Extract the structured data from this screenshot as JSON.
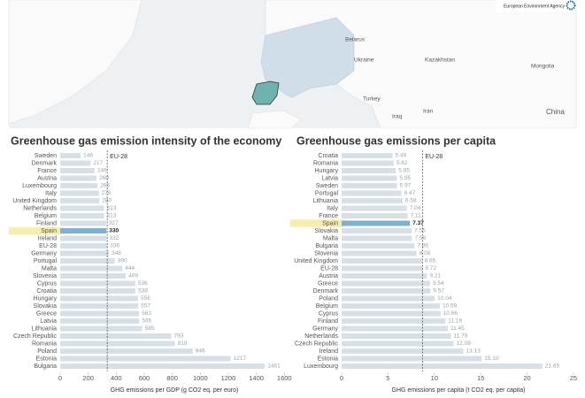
{
  "header": {
    "logo": "European Environment Agency"
  },
  "map": {
    "labels": [
      "Belarus",
      "Ukraine",
      "Kazakhstan",
      "Mongolia",
      "Turkey",
      "Iraq",
      "Iran",
      "China"
    ]
  },
  "chart_data": [
    {
      "type": "bar",
      "orientation": "horizontal",
      "title": "Greenhouse gas emission intensity of the economy",
      "categories": [
        "Sweden",
        "Denmark",
        "France",
        "Austria",
        "Luxembourg",
        "Italy",
        "United Kingdom",
        "Netherlands",
        "Belgium",
        "Finland",
        "Spain",
        "Ireland",
        "EU-28",
        "Germany",
        "Portugal",
        "Malta",
        "Slovenia",
        "Cyprus",
        "Croatia",
        "Hungary",
        "Slovakia",
        "Greece",
        "Latvia",
        "Lithuania",
        "Czech Republic",
        "Romania",
        "Poland",
        "Estonia",
        "Bulgaria"
      ],
      "values": [
        146,
        217,
        246,
        260,
        266,
        276,
        280,
        313,
        313,
        327,
        330,
        332,
        336,
        348,
        390,
        444,
        469,
        536,
        538,
        556,
        557,
        563,
        565,
        585,
        793,
        819,
        946,
        1217,
        1461
      ],
      "color": "#d7dfe7",
      "highlight": "Spain",
      "highlight_color": "#7fb0d0",
      "highlight_label_color": "#f6eeaa",
      "reference_label": "EU-28",
      "xlim": [
        0,
        1630
      ],
      "xticks": [
        0,
        200,
        400,
        600,
        800,
        1000,
        1200,
        1400,
        1600
      ],
      "xlabel": "GHG emissions per GDP (g CO2 eq. per euro)"
    },
    {
      "type": "bar",
      "orientation": "horizontal",
      "title": "Greenhouse gas emissions per capita",
      "categories": [
        "Croatia",
        "Romania",
        "Hungary",
        "Latvia",
        "Sweden",
        "Portugal",
        "Lithuania",
        "Italy",
        "France",
        "Spain",
        "Slovakia",
        "Malta",
        "Bulgaria",
        "Slovenia",
        "United Kingdom",
        "EU-28",
        "Austria",
        "Greece",
        "Denmark",
        "Poland",
        "Belgium",
        "Cyprus",
        "Finland",
        "Germany",
        "Netherlands",
        "Czech Republic",
        "Ireland",
        "Estonia",
        "Luxembourg"
      ],
      "values": [
        5.49,
        5.62,
        5.85,
        5.95,
        5.97,
        6.47,
        6.58,
        7.04,
        7.11,
        7.37,
        7.55,
        7.59,
        7.86,
        8.08,
        8.65,
        8.72,
        9.21,
        9.54,
        9.57,
        10.04,
        10.59,
        10.66,
        11.19,
        11.45,
        11.79,
        12.08,
        13.13,
        15.1,
        21.65
      ],
      "value_labels": [
        "5.49",
        "5.62",
        "5.85",
        "5.95",
        "5.97",
        "6.47",
        "6.58",
        "7.04",
        "7.11",
        "7.37",
        "7.55",
        "7.59",
        "7.86",
        "8.08",
        "8.65",
        "8.72",
        "9.21",
        "9.54",
        "9.57",
        "10.04",
        "10.59",
        "10.66",
        "11.19",
        "11.45",
        "11.79",
        "12.08",
        "13.13",
        "15.10",
        "21.65"
      ],
      "color": "#d7dfe7",
      "highlight": "Spain",
      "highlight_color": "#7fb0d0",
      "highlight_label_color": "#f6eeaa",
      "reference_label": "EU-28",
      "xlim": [
        0,
        25.2
      ],
      "xticks": [
        0,
        5,
        10,
        15,
        20,
        25
      ],
      "xlabel": "GHG emissions per capita (t CO2 eq. per capita)"
    }
  ]
}
